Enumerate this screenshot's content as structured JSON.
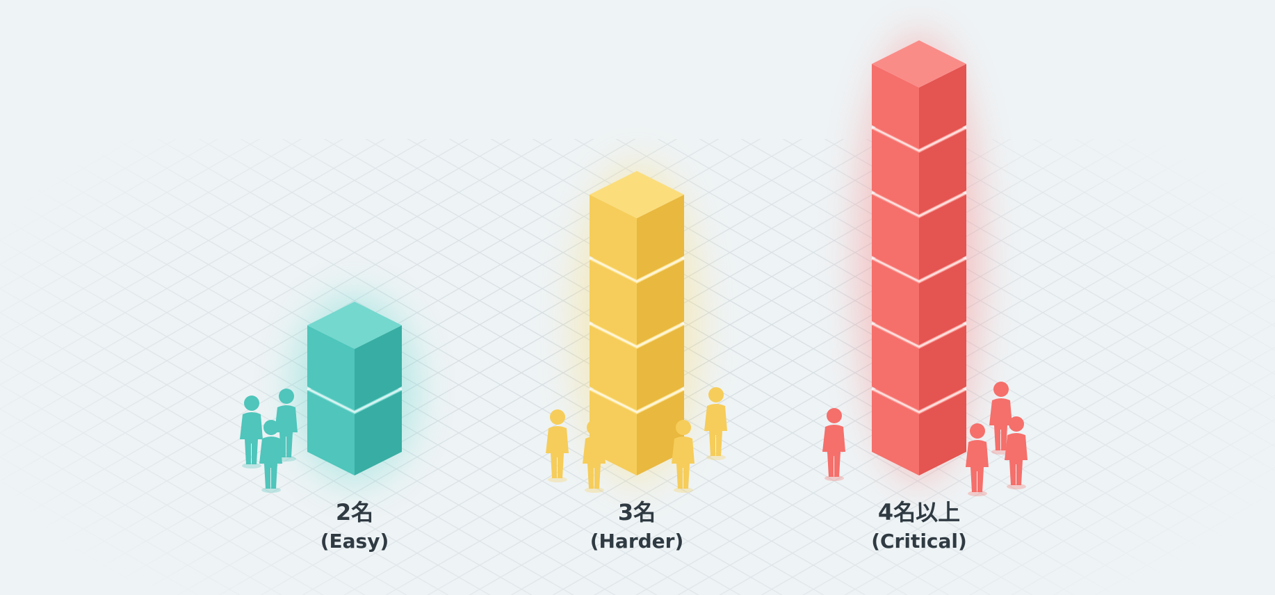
{
  "columns": [
    {
      "label": "2名",
      "caption": "(Easy)"
    },
    {
      "label": "3名",
      "caption": "(Harder)"
    },
    {
      "label": "4名以上",
      "caption": "(Critical)"
    }
  ]
}
